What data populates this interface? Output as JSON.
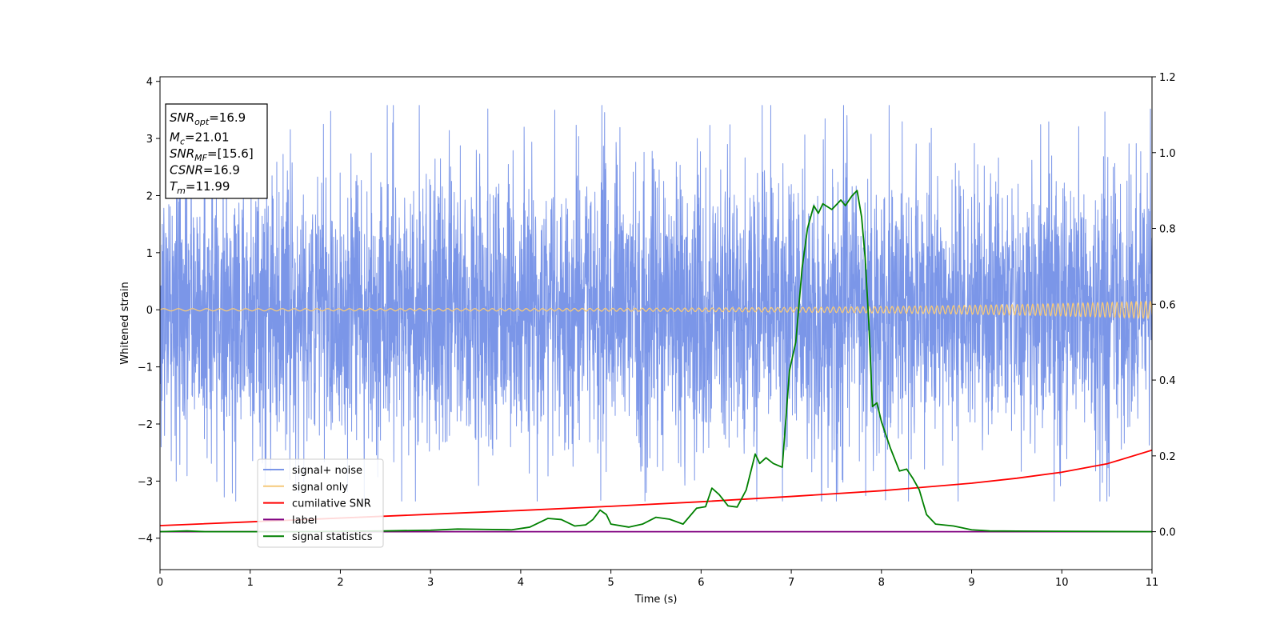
{
  "chart_data": {
    "type": "line",
    "xlabel": "Time (s)",
    "ylabel_left": "Whitened strain",
    "xlim": [
      0,
      11
    ],
    "ylim_left": [
      -4.55,
      4.08
    ],
    "ylim_right": [
      -0.1,
      1.2
    ],
    "x_ticks": [
      "0",
      "1",
      "2",
      "3",
      "4",
      "5",
      "6",
      "7",
      "8",
      "9",
      "10",
      "11"
    ],
    "y_left_ticks": [
      "−4",
      "−3",
      "−2",
      "−1",
      "0",
      "1",
      "2",
      "3",
      "4"
    ],
    "y_right_ticks": [
      "0.0",
      "0.2",
      "0.4",
      "0.6",
      "0.8",
      "1.0",
      "1.2"
    ],
    "grid": false,
    "legend_position": "lower-left",
    "annotation": {
      "lines": [
        {
          "sym": "SNR",
          "sub": "opt",
          "value": "=16.9"
        },
        {
          "sym": "M",
          "sub": "c",
          "value": "=21.01"
        },
        {
          "sym": "SNR",
          "sub": "MF",
          "value": "=[15.6]"
        },
        {
          "sym": "CSNR",
          "sub": "",
          "value": "=16.9"
        },
        {
          "sym": "T",
          "sub": "m",
          "value": "=11.99"
        }
      ]
    },
    "series": [
      {
        "name": "signal+ noise",
        "axis": "left",
        "color": "#7b96e8",
        "kind": "noise",
        "noise_amplitude_typical": 2.0,
        "y_range": [
          -3.35,
          3.58
        ]
      },
      {
        "name": "signal only",
        "axis": "left",
        "color": "#f5c97a",
        "kind": "chirp",
        "amplitude_start": 0.02,
        "amplitude_end": 0.15
      },
      {
        "name": "cumilative SNR",
        "axis": "right",
        "color": "#ff0000",
        "x": [
          0,
          1,
          2,
          3,
          4,
          5,
          6,
          7,
          8,
          9,
          9.5,
          10,
          10.5,
          11
        ],
        "y": [
          0.016,
          0.026,
          0.036,
          0.046,
          0.056,
          0.067,
          0.079,
          0.093,
          0.108,
          0.128,
          0.141,
          0.157,
          0.179,
          0.215
        ]
      },
      {
        "name": "label",
        "axis": "right",
        "color": "#800080",
        "x": [
          0,
          11
        ],
        "y": [
          0.0,
          0.0
        ]
      },
      {
        "name": "signal statistics",
        "axis": "right",
        "color": "#008000",
        "x": [
          0,
          0.3,
          0.5,
          1,
          1.5,
          2,
          2.5,
          3,
          3.3,
          3.6,
          3.9,
          4.1,
          4.3,
          4.45,
          4.6,
          4.72,
          4.8,
          4.88,
          4.95,
          5.0,
          5.2,
          5.35,
          5.5,
          5.65,
          5.8,
          5.95,
          6.05,
          6.12,
          6.2,
          6.3,
          6.4,
          6.5,
          6.6,
          6.65,
          6.72,
          6.8,
          6.9,
          6.98,
          7.05,
          7.12,
          7.18,
          7.25,
          7.3,
          7.35,
          7.45,
          7.55,
          7.6,
          7.67,
          7.73,
          7.78,
          7.82,
          7.86,
          7.9,
          7.95,
          8.0,
          8.1,
          8.2,
          8.28,
          8.35,
          8.42,
          8.5,
          8.6,
          8.8,
          9.0,
          9.2,
          10,
          11
        ],
        "y": [
          0.0,
          0.002,
          0.0,
          0.0,
          0.0,
          0.001,
          0.002,
          0.004,
          0.007,
          0.006,
          0.005,
          0.012,
          0.035,
          0.032,
          0.015,
          0.018,
          0.032,
          0.057,
          0.045,
          0.02,
          0.012,
          0.02,
          0.038,
          0.033,
          0.02,
          0.062,
          0.066,
          0.115,
          0.098,
          0.068,
          0.065,
          0.11,
          0.205,
          0.18,
          0.195,
          0.18,
          0.17,
          0.425,
          0.5,
          0.695,
          0.8,
          0.86,
          0.84,
          0.865,
          0.85,
          0.875,
          0.86,
          0.885,
          0.9,
          0.83,
          0.72,
          0.55,
          0.33,
          0.34,
          0.29,
          0.22,
          0.16,
          0.165,
          0.14,
          0.11,
          0.045,
          0.02,
          0.015,
          0.005,
          0.002,
          0.001,
          0.0
        ]
      }
    ]
  }
}
